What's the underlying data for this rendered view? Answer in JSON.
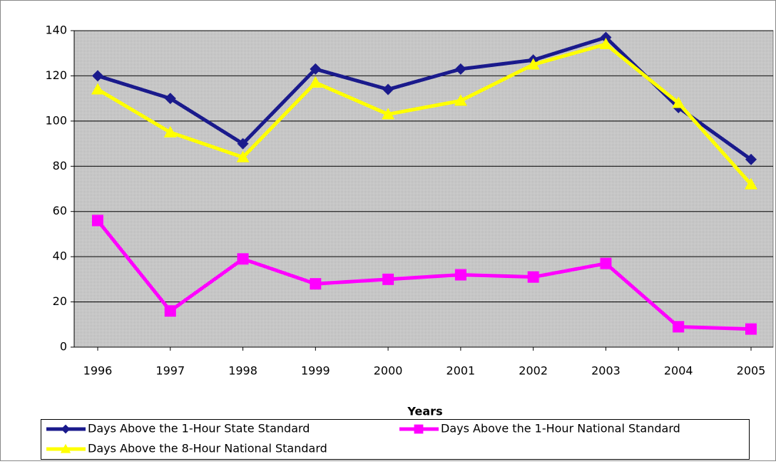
{
  "chart_data": {
    "type": "line",
    "x_label": "Years",
    "categories": [
      "1996",
      "1997",
      "1998",
      "1999",
      "2000",
      "2001",
      "2002",
      "2003",
      "2004",
      "2005"
    ],
    "series": [
      {
        "name": "Days Above the 1-Hour State Standard",
        "color": "#1a1a8c",
        "marker": "diamond",
        "values": [
          120,
          110,
          90,
          123,
          114,
          123,
          127,
          137,
          106,
          83
        ]
      },
      {
        "name": "Days Above the 1-Hour National Standard",
        "color": "#ff00ff",
        "marker": "square",
        "values": [
          56,
          16,
          39,
          28,
          30,
          32,
          31,
          37,
          9,
          8
        ]
      },
      {
        "name": "Days Above the 8-Hour National Standard",
        "color": "#ffff00",
        "marker": "triangle",
        "values": [
          114,
          95,
          84,
          117,
          103,
          109,
          125,
          134,
          108,
          72
        ]
      }
    ],
    "ylim": [
      0,
      140
    ],
    "yticks": [
      0,
      20,
      40,
      60,
      80,
      100,
      120,
      140
    ],
    "grid": true,
    "legend": "bottom"
  }
}
